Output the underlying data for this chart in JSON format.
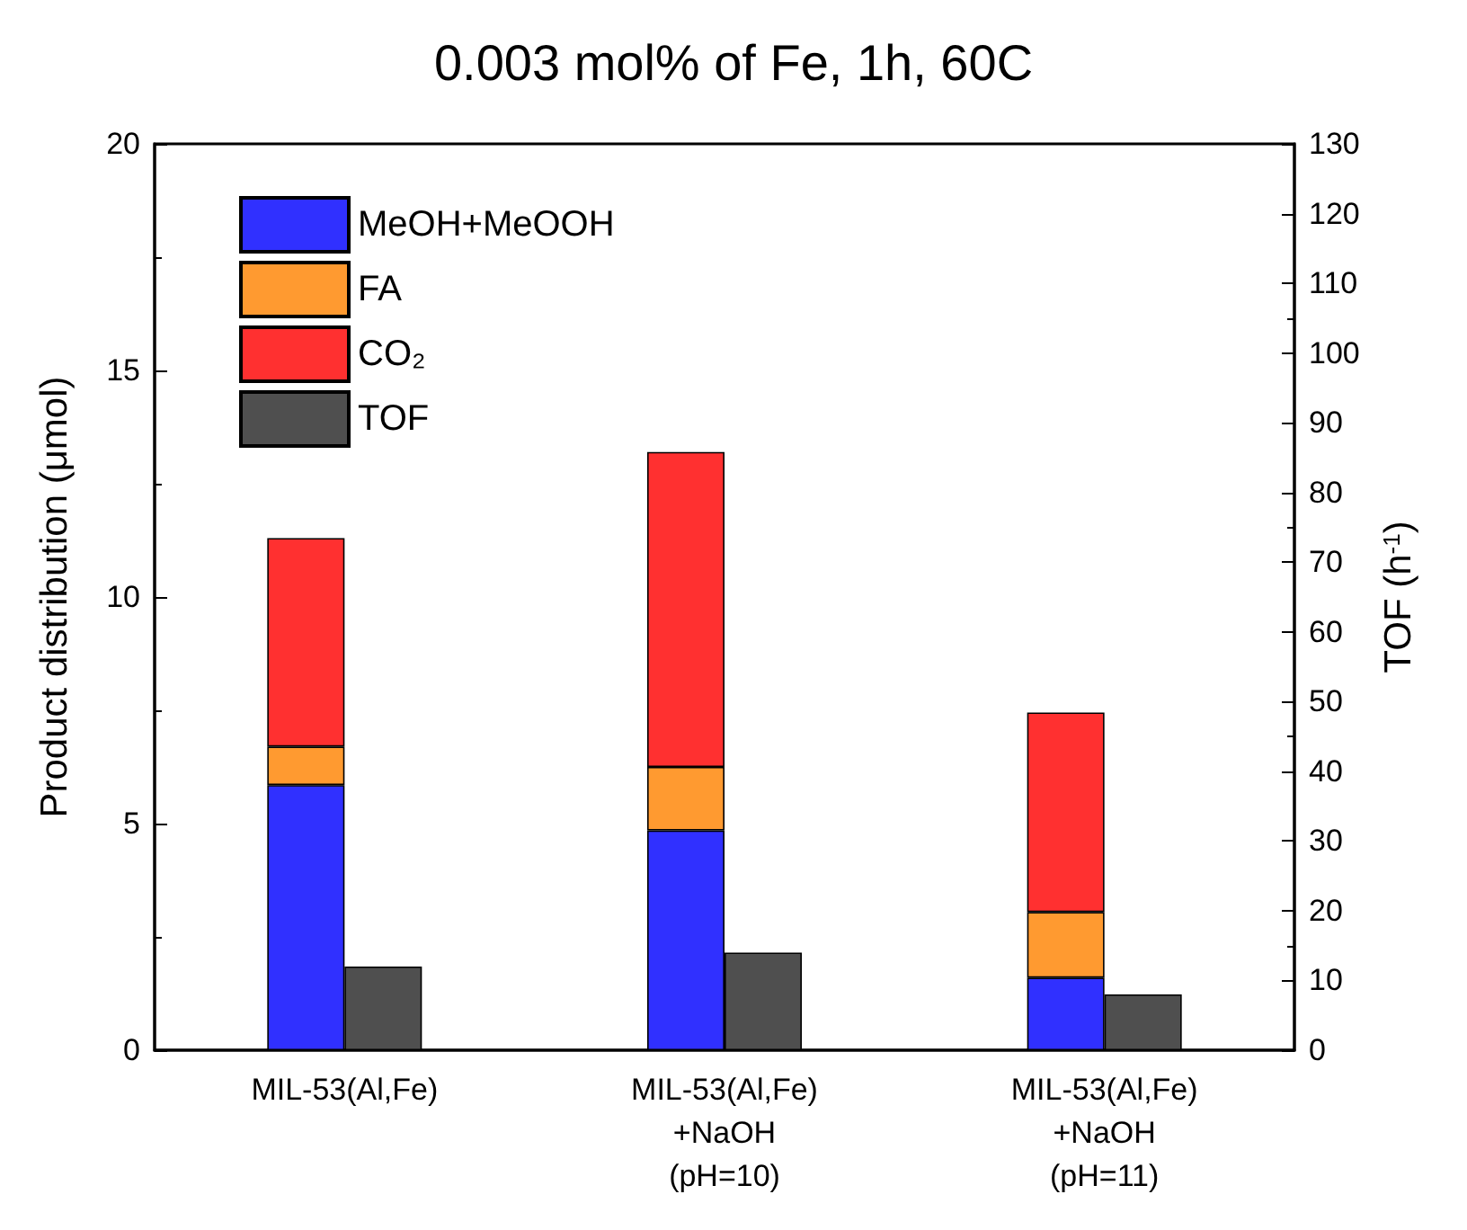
{
  "chart_data": {
    "type": "bar",
    "title": "0.003 mol% of Fe, 1h, 60C",
    "ylabel": "Product distribution (μmol)",
    "y2label": "TOF (h$^{-1}$)",
    "categories": [
      "MIL-53(Al,Fe)",
      "MIL-53(Al,Fe)\n+NaOH\n(pH=10)",
      "MIL-53(Al,Fe)\n+NaOH\n(pH=11)"
    ],
    "stacked": true,
    "series": [
      {
        "name": "MeOH+MeOOH",
        "color": "#3030ff",
        "values": [
          5.85,
          4.85,
          1.6
        ]
      },
      {
        "name": "FA",
        "color": "#ff9a30",
        "values": [
          0.85,
          1.4,
          1.45
        ]
      },
      {
        "name": "CO₂",
        "color": "#ff3030",
        "values": [
          4.6,
          6.95,
          4.4
        ]
      },
      {
        "name": "TOF",
        "color": "#4f4f4f",
        "axis": "y2",
        "values": [
          12,
          14,
          8
        ]
      }
    ],
    "ylim": [
      0,
      20
    ],
    "yticks": [
      0,
      5,
      10,
      15,
      20
    ],
    "y2lim": [
      0,
      130
    ],
    "y2ticks": [
      0,
      10,
      20,
      30,
      40,
      50,
      60,
      70,
      80,
      90,
      100,
      110,
      120,
      130
    ],
    "grid": false,
    "legend": "top left"
  }
}
